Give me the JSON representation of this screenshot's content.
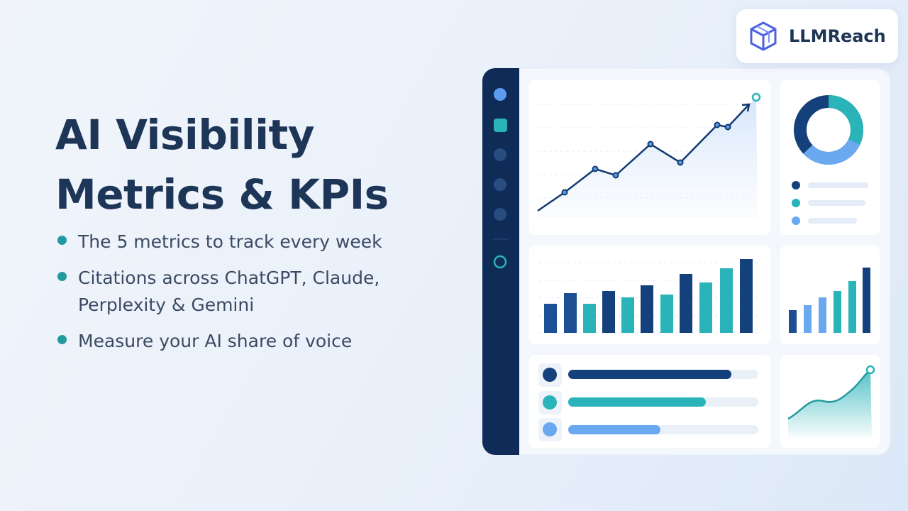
{
  "brand": "LLMReach",
  "title": "AI Visibility Metrics & KPIs",
  "bullets": [
    "The 5 metrics to track every week",
    "Citations across ChatGPT, Claude, Perplexity & Gemini",
    "Measure your AI share of voice"
  ]
}
